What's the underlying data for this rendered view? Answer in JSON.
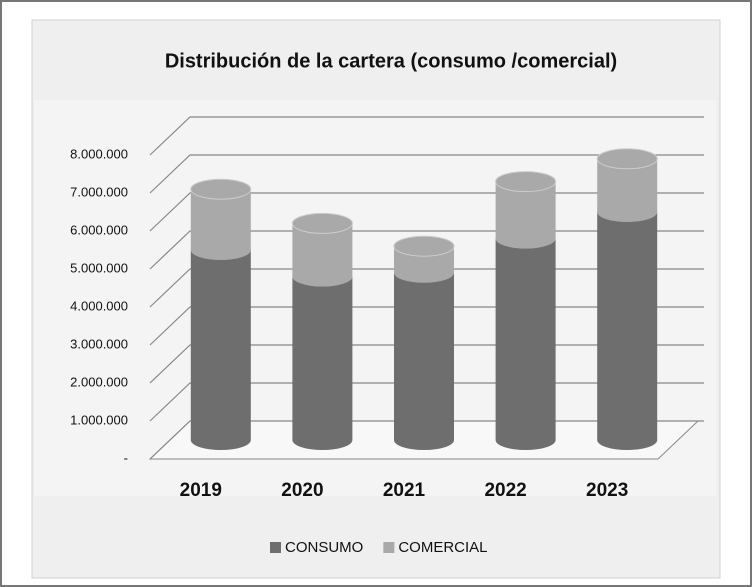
{
  "chart_data": {
    "type": "bar3d_stacked",
    "title": "Distribución de la cartera (consumo /comercial)",
    "categories": [
      "2019",
      "2020",
      "2021",
      "2022",
      "2023"
    ],
    "series": [
      {
        "name": "CONSUMO",
        "color": "#6e6e6e",
        "values": [
          5000000,
          4300000,
          4400000,
          5300000,
          6000000
        ]
      },
      {
        "name": "COMERCIAL",
        "color": "#a9a9a9",
        "values": [
          1600000,
          1400000,
          700000,
          1500000,
          1400000
        ]
      }
    ],
    "ylim": [
      0,
      8000000
    ],
    "yticks": [
      {
        "value": 0,
        "label": "-"
      },
      {
        "value": 1000000,
        "label": "1.000.000"
      },
      {
        "value": 2000000,
        "label": "2.000.000"
      },
      {
        "value": 3000000,
        "label": "3.000.000"
      },
      {
        "value": 4000000,
        "label": "4.000.000"
      },
      {
        "value": 5000000,
        "label": "5.000.000"
      },
      {
        "value": 6000000,
        "label": "6.000.000"
      },
      {
        "value": 7000000,
        "label": "7.000.000"
      },
      {
        "value": 8000000,
        "label": "8.000.000"
      }
    ],
    "grid": true,
    "legend": "bottom"
  }
}
